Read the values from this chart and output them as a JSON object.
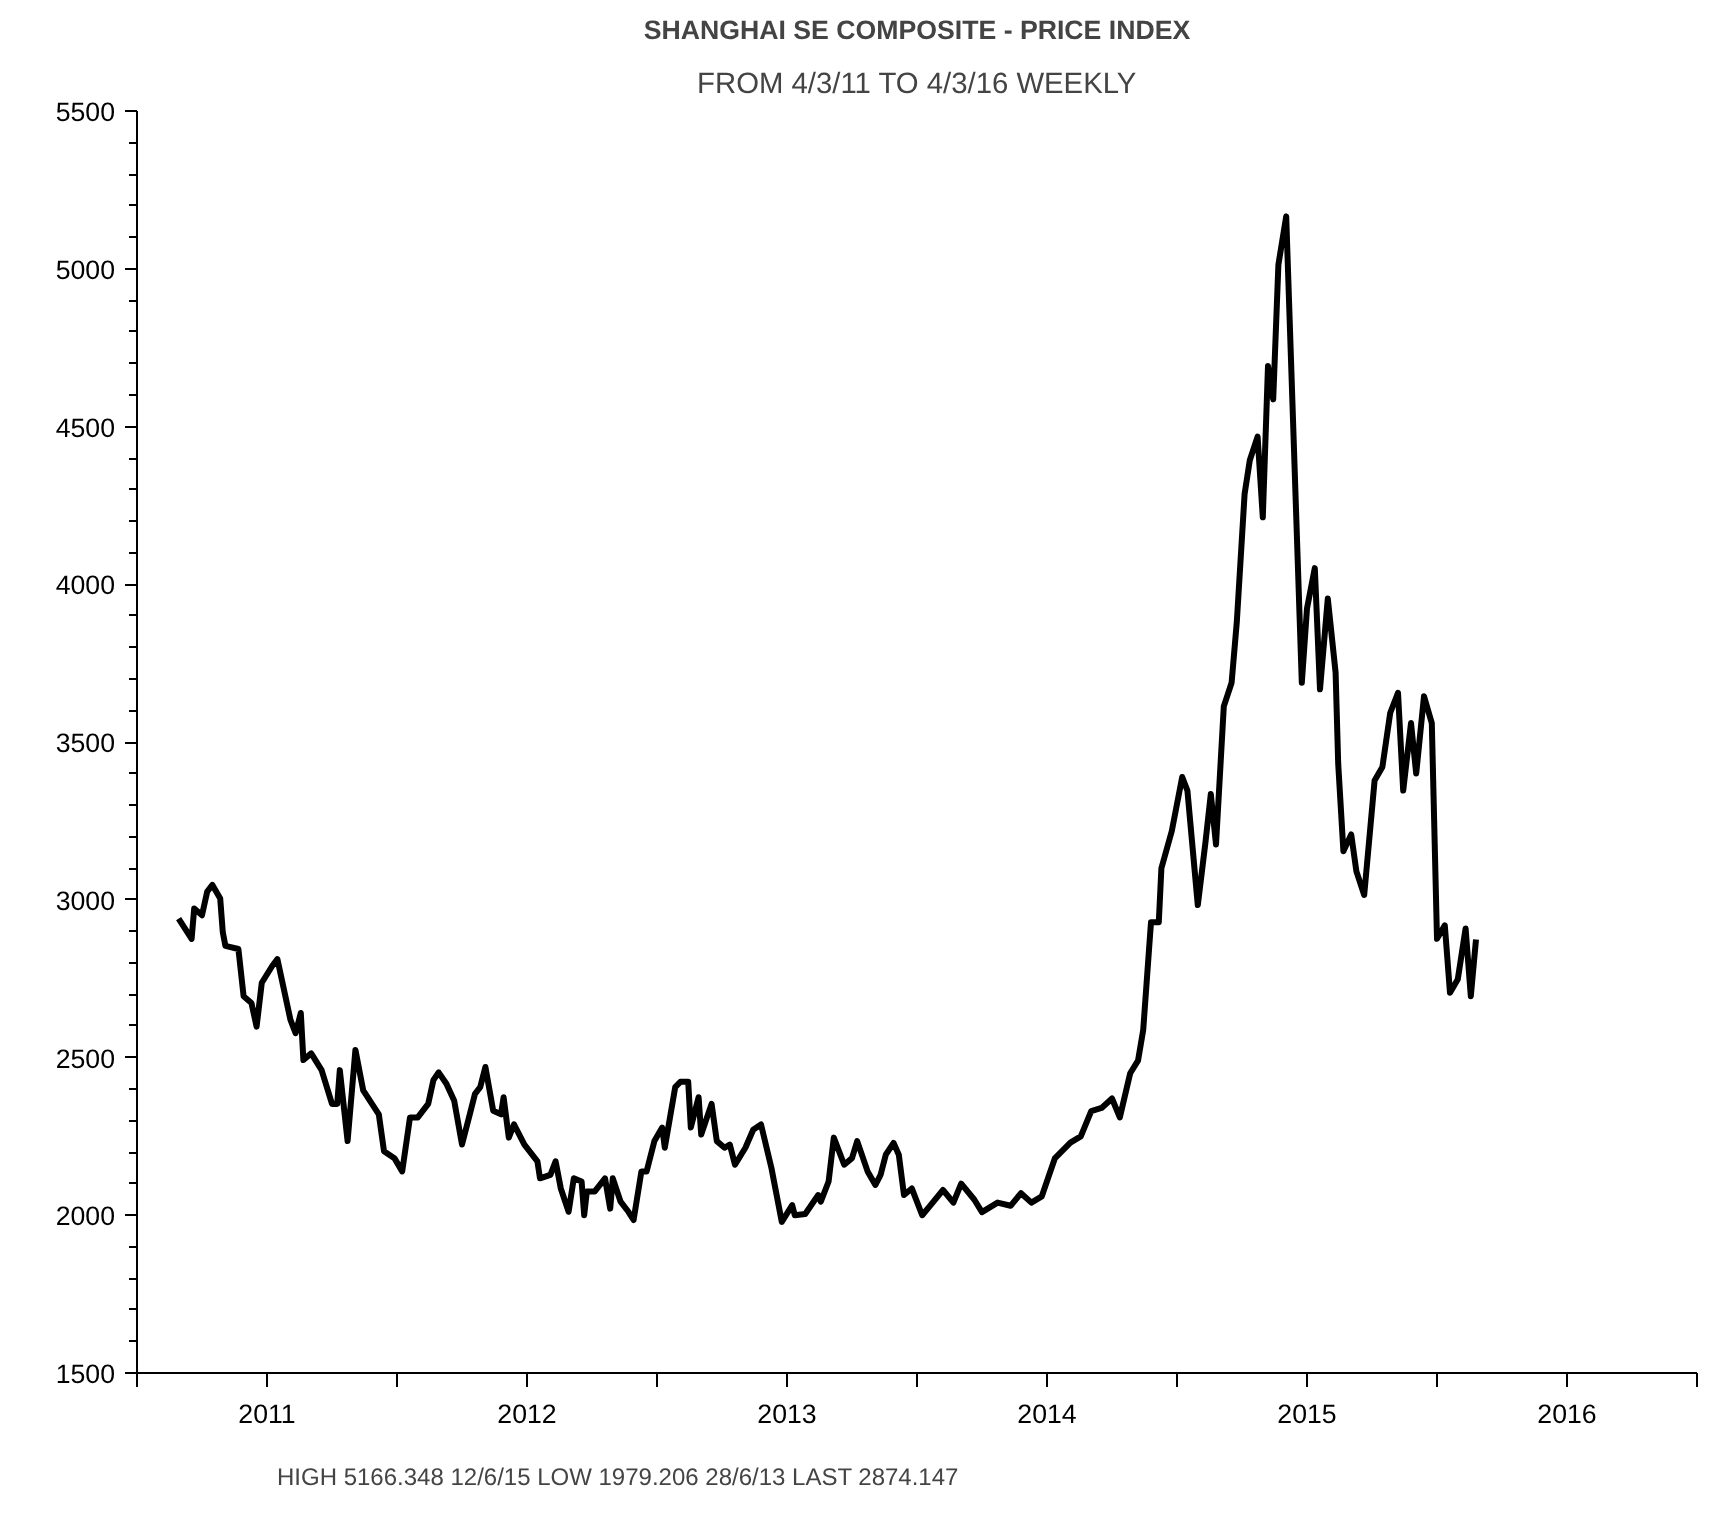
{
  "chart_data": {
    "type": "line",
    "title": "SHANGHAI SE COMPOSITE - PRICE INDEX",
    "subtitle": "FROM 4/3/11 TO 4/3/16 WEEKLY",
    "annotations": [
      "HIGH 5166.348 12/6/15 LOW 1979.206 28/6/13 LAST 2874.147"
    ],
    "xlim": [
      2011,
      2017
    ],
    "xticks": [
      {
        "value": 2011,
        "label": null
      },
      {
        "value": 2011.5,
        "label": "2011"
      },
      {
        "value": 2012,
        "label": null
      },
      {
        "value": 2012.5,
        "label": "2012"
      },
      {
        "value": 2013,
        "label": null
      },
      {
        "value": 2013.5,
        "label": "2013"
      },
      {
        "value": 2014,
        "label": null
      },
      {
        "value": 2014.5,
        "label": "2014"
      },
      {
        "value": 2015,
        "label": null
      },
      {
        "value": 2015.5,
        "label": "2015"
      },
      {
        "value": 2016,
        "label": null
      },
      {
        "value": 2016.5,
        "label": "2016"
      },
      {
        "value": 2017,
        "label": null
      }
    ],
    "ylim": [
      1500,
      5500
    ],
    "yticks": [
      1500,
      {
        "value": 1600,
        "label": null
      },
      {
        "value": 1700,
        "label": null
      },
      {
        "value": 1800,
        "label": null
      },
      {
        "value": 1900,
        "label": null
      },
      2000,
      {
        "value": 2100,
        "label": null
      },
      {
        "value": 2200,
        "label": null
      },
      {
        "value": 2300,
        "label": null
      },
      {
        "value": 2400,
        "label": null
      },
      2500,
      {
        "value": 2600,
        "label": null
      },
      {
        "value": 2700,
        "label": null
      },
      {
        "value": 2800,
        "label": null
      },
      {
        "value": 2900,
        "label": null
      },
      3000,
      {
        "value": 3100,
        "label": null
      },
      {
        "value": 3200,
        "label": null
      },
      {
        "value": 3300,
        "label": null
      },
      {
        "value": 3400,
        "label": null
      },
      3500,
      {
        "value": 3600,
        "label": null
      },
      {
        "value": 3700,
        "label": null
      },
      {
        "value": 3800,
        "label": null
      },
      {
        "value": 3900,
        "label": null
      },
      4000,
      {
        "value": 4100,
        "label": null
      },
      {
        "value": 4200,
        "label": null
      },
      {
        "value": 4300,
        "label": null
      },
      {
        "value": 4400,
        "label": null
      },
      4500,
      {
        "value": 4600,
        "label": null
      },
      {
        "value": 4700,
        "label": null
      },
      {
        "value": 4800,
        "label": null
      },
      {
        "value": 4900,
        "label": null
      },
      5000,
      {
        "value": 5100,
        "label": null
      },
      {
        "value": 5200,
        "label": null
      },
      {
        "value": 5300,
        "label": null
      },
      {
        "value": 5400,
        "label": null
      },
      5500
    ],
    "grid": false,
    "marker": "none",
    "line_style": "solid",
    "x": [
      2011.16,
      2011.21,
      2011.22,
      2011.25,
      2011.27,
      2011.29,
      2011.32,
      2011.33,
      2011.34,
      2011.39,
      2011.41,
      2011.44,
      2011.46,
      2011.48,
      2011.52,
      2011.54,
      2011.59,
      2011.61,
      2011.63,
      2011.64,
      2011.67,
      2011.71,
      2011.75,
      2011.77,
      2011.78,
      2011.81,
      2011.84,
      2011.87,
      2011.93,
      2011.95,
      2011.99,
      2012.02,
      2012.05,
      2012.08,
      2012.12,
      2012.14,
      2012.16,
      2012.19,
      2012.22,
      2012.25,
      2012.28,
      2012.3,
      2012.32,
      2012.34,
      2012.37,
      2012.4,
      2012.41,
      2012.43,
      2012.45,
      2012.49,
      2012.54,
      2012.55,
      2012.59,
      2012.61,
      2012.63,
      2012.66,
      2012.68,
      2012.71,
      2012.72,
      2012.73,
      2012.76,
      2012.8,
      2012.82,
      2012.83,
      2012.86,
      2012.89,
      2012.91,
      2012.94,
      2012.96,
      2012.99,
      2013.02,
      2013.03,
      2013.05,
      2013.07,
      2013.09,
      2013.12,
      2013.13,
      2013.16,
      2013.17,
      2013.21,
      2013.23,
      2013.26,
      2013.28,
      2013.3,
      2013.34,
      2013.37,
      2013.4,
      2013.44,
      2013.48,
      2013.52,
      2013.53,
      2013.57,
      2013.62,
      2013.63,
      2013.66,
      2013.68,
      2013.72,
      2013.75,
      2013.77,
      2013.81,
      2013.84,
      2013.86,
      2013.88,
      2013.91,
      2013.93,
      2013.95,
      2013.98,
      2014.02,
      2014.05,
      2014.1,
      2014.14,
      2014.17,
      2014.22,
      2014.25,
      2014.31,
      2014.36,
      2014.4,
      2014.44,
      2014.48,
      2014.53,
      2014.59,
      2014.63,
      2014.67,
      2014.71,
      2014.75,
      2014.78,
      2014.82,
      2014.85,
      2014.87,
      2014.9,
      2014.93,
      2014.94,
      2014.98,
      2015.02,
      2015.04,
      2015.08,
      2015.11,
      2015.13,
      2015.15,
      2015.18,
      2015.21,
      2015.23,
      2015.26,
      2015.28,
      2015.31,
      2015.33,
      2015.35,
      2015.37,
      2015.39,
      2015.42,
      2015.48,
      2015.5,
      2015.53,
      2015.55,
      2015.58,
      2015.61,
      2015.62,
      2015.64,
      2015.67,
      2015.69,
      2015.72,
      2015.76,
      2015.79,
      2015.82,
      2015.85,
      2015.87,
      2015.9,
      2015.92,
      2015.95,
      2015.98,
      2016.0,
      2016.03,
      2016.05,
      2016.08,
      2016.11,
      2016.13,
      2016.15
    ],
    "series": [
      {
        "color": "#000000",
        "values": [
          2940,
          2876,
          2972,
          2951,
          3026,
          3047,
          3004,
          2897,
          2854,
          2844,
          2694,
          2673,
          2598,
          2737,
          2790,
          2812,
          2620,
          2577,
          2641,
          2492,
          2513,
          2460,
          2353,
          2353,
          2460,
          2235,
          2524,
          2396,
          2320,
          2203,
          2181,
          2139,
          2310,
          2310,
          2353,
          2428,
          2453,
          2417,
          2363,
          2224,
          2320,
          2385,
          2406,
          2470,
          2331,
          2320,
          2374,
          2246,
          2288,
          2224,
          2171,
          2117,
          2128,
          2171,
          2085,
          2011,
          2117,
          2107,
          2000,
          2075,
          2075,
          2117,
          2021,
          2117,
          2043,
          2011,
          1985,
          2139,
          2139,
          2235,
          2278,
          2214,
          2310,
          2406,
          2423,
          2423,
          2278,
          2374,
          2256,
          2353,
          2235,
          2214,
          2224,
          2160,
          2214,
          2271,
          2288,
          2150,
          1979,
          2032,
          2000,
          2004,
          2064,
          2043,
          2107,
          2246,
          2160,
          2181,
          2235,
          2139,
          2096,
          2128,
          2192,
          2229,
          2192,
          2064,
          2085,
          2000,
          2030,
          2080,
          2040,
          2100,
          2050,
          2010,
          2040,
          2030,
          2070,
          2040,
          2060,
          2180,
          2230,
          2250,
          2330,
          2340,
          2370,
          2310,
          2450,
          2490,
          2587,
          2929,
          2929,
          3100,
          3218,
          3389,
          3346,
          2983,
          3186,
          3335,
          3175,
          3613,
          3688,
          3880,
          4286,
          4393,
          4468,
          4212,
          4692,
          4586,
          5013,
          5166,
          3688,
          3923,
          4051,
          3667,
          3955,
          3720,
          3431,
          3154,
          3207,
          3090,
          3015,
          3378,
          3421,
          3592,
          3656,
          3346,
          3560,
          3400,
          3645,
          3560,
          2876,
          2919,
          2705,
          2748,
          2909,
          2694,
          2874
        ]
      }
    ]
  }
}
